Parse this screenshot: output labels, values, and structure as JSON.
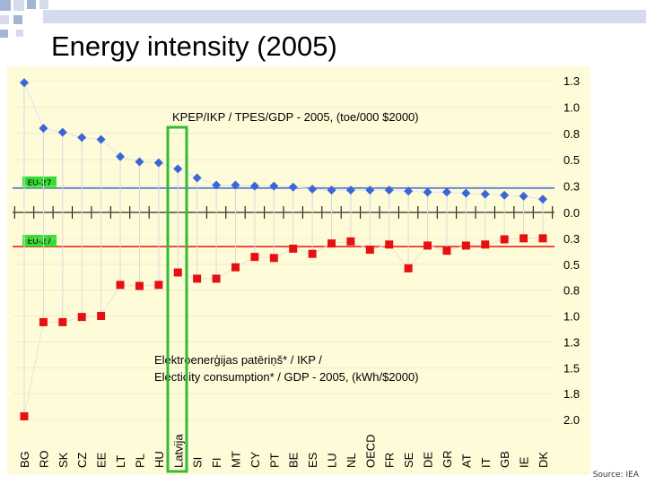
{
  "slide": {
    "title": "Energy intensity (2005)",
    "source": "Source: IEA"
  },
  "colors": {
    "background": "#fefcd8",
    "squares_a": "#a3b4d6",
    "squares_b": "#d5dbec",
    "top_series": "#3a66d6",
    "bottom_series": "#e61010",
    "eu_label_bg": "#33dd33",
    "highlight": "#33bb33"
  },
  "chart_data": {
    "type": "scatter",
    "title": "",
    "categories": [
      "BG",
      "RO",
      "SK",
      "CZ",
      "EE",
      "LT",
      "PL",
      "HU",
      "Latvija",
      "SI",
      "FI",
      "MT",
      "CY",
      "PT",
      "BE",
      "ES",
      "LU",
      "NL",
      "OECD",
      "FR",
      "SE",
      "DE",
      "GR",
      "AT",
      "IT",
      "GB",
      "IE",
      "DK"
    ],
    "highlight_category": "Latvija",
    "upper_axis": {
      "ticks": [
        "1.3",
        "1.0",
        "0.8",
        "0.5",
        "0.3",
        "0.0"
      ],
      "range": [
        0,
        1.3
      ]
    },
    "lower_axis": {
      "ticks": [
        "0.3",
        "0.5",
        "0.8",
        "1.0",
        "1.3",
        "1.5",
        "1.8",
        "2.0"
      ],
      "range": [
        0,
        2.0
      ]
    },
    "series": [
      {
        "name": "KPEP/IKP / TPES/GDP - 2005, (toe/000 $2000)",
        "values": [
          1.28,
          0.83,
          0.79,
          0.74,
          0.72,
          0.55,
          0.5,
          0.49,
          0.43,
          0.34,
          0.27,
          0.27,
          0.26,
          0.26,
          0.25,
          0.23,
          0.22,
          0.22,
          0.22,
          0.22,
          0.21,
          0.2,
          0.2,
          0.19,
          0.18,
          0.17,
          0.16,
          0.13
        ]
      },
      {
        "name_lines": [
          "Elektroenerģijas patēriņš* / IKP /",
          "Electicity consumption* / GDP - 2005, (kWh/$2000)"
        ],
        "values": [
          1.97,
          1.06,
          1.06,
          1.01,
          1.0,
          0.7,
          0.71,
          0.7,
          0.58,
          0.64,
          0.64,
          0.53,
          0.43,
          0.44,
          0.35,
          0.4,
          0.3,
          0.28,
          0.36,
          0.31,
          0.54,
          0.32,
          0.37,
          0.32,
          0.31,
          0.26,
          0.25,
          0.25
        ]
      }
    ],
    "reference_lines": [
      {
        "label": "EU-27",
        "axis": "upper",
        "value": 0.24
      },
      {
        "label": "EU-27",
        "axis": "lower",
        "value": 0.33
      }
    ]
  }
}
